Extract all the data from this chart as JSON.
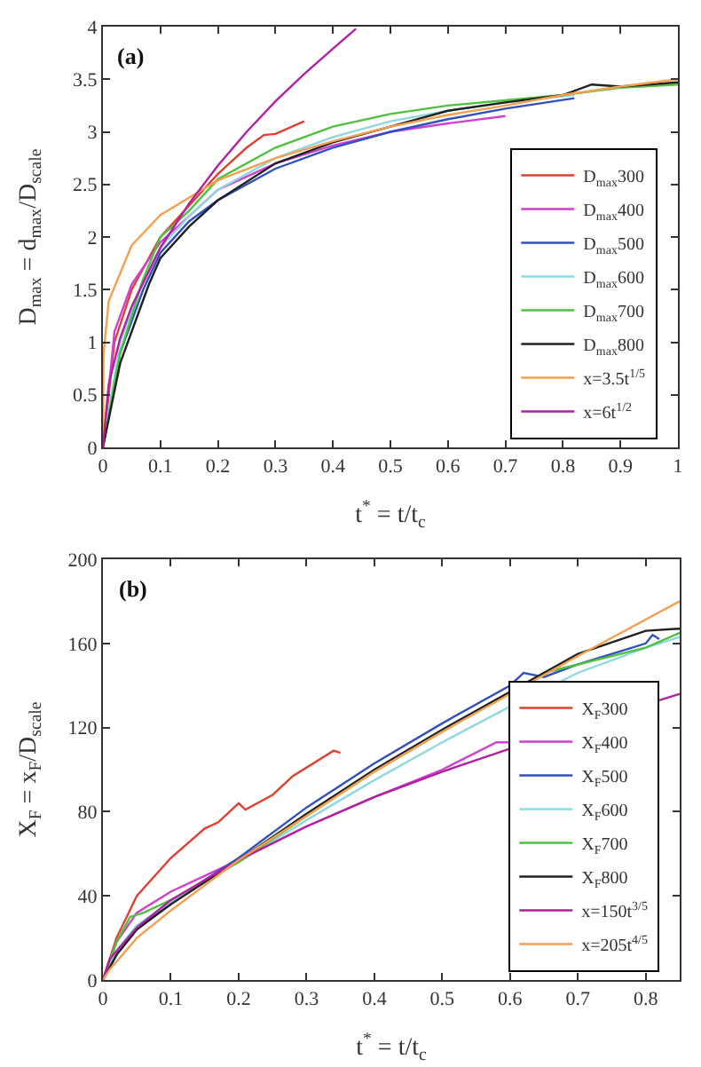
{
  "chart_data": [
    {
      "type": "line",
      "xlabel": "t$^{*}$ = t/t$_{c}$",
      "ylabel": "D$_{max}$ = d$_{max}$/D$_{scale}$",
      "annotations": [
        "(a)"
      ],
      "xlim": [
        0,
        1
      ],
      "ylim": [
        0,
        4
      ],
      "xticks": [
        0,
        0.1,
        0.2,
        0.3,
        0.4,
        0.5,
        0.6,
        0.7,
        0.8,
        0.9,
        1
      ],
      "yticks": [
        0,
        0.5,
        1,
        1.5,
        2,
        2.5,
        3,
        3.5,
        4
      ],
      "grid": false,
      "legend": "bottom right",
      "marker": "none",
      "line_style": "solid",
      "series": [
        {
          "name": "D$_{max}$300",
          "color": "#e04030",
          "x": [
            0,
            0.02,
            0.05,
            0.1,
            0.15,
            0.2,
            0.25,
            0.28,
            0.3,
            0.35
          ],
          "values": [
            0,
            1.0,
            1.5,
            2.0,
            2.3,
            2.6,
            2.85,
            2.97,
            2.98,
            3.1
          ]
        },
        {
          "name": "D$_{max}$400",
          "color": "#d040d0",
          "x": [
            0,
            0.02,
            0.05,
            0.1,
            0.15,
            0.2,
            0.3,
            0.4,
            0.5,
            0.6,
            0.7
          ],
          "values": [
            0,
            1.1,
            1.55,
            1.95,
            2.2,
            2.45,
            2.7,
            2.87,
            3.0,
            3.08,
            3.15
          ]
        },
        {
          "name": "D$_{max}$500",
          "color": "#3050c0",
          "x": [
            0,
            0.03,
            0.07,
            0.1,
            0.15,
            0.2,
            0.3,
            0.4,
            0.5,
            0.6,
            0.7,
            0.82
          ],
          "values": [
            0,
            0.9,
            1.5,
            1.85,
            2.15,
            2.35,
            2.65,
            2.85,
            3.0,
            3.12,
            3.22,
            3.32
          ]
        },
        {
          "name": "D$_{max}$600",
          "color": "#90d8e0",
          "x": [
            0,
            0.03,
            0.07,
            0.1,
            0.15,
            0.2,
            0.3,
            0.4,
            0.5,
            0.6,
            0.7,
            0.82
          ],
          "values": [
            0,
            1.0,
            1.6,
            1.9,
            2.2,
            2.45,
            2.75,
            2.95,
            3.1,
            3.2,
            3.28,
            3.35
          ]
        },
        {
          "name": "D$_{max}$700",
          "color": "#50c040",
          "x": [
            0,
            0.03,
            0.07,
            0.1,
            0.15,
            0.2,
            0.3,
            0.4,
            0.5,
            0.6,
            0.7,
            0.8,
            0.9,
            1.0
          ],
          "values": [
            0,
            0.9,
            1.6,
            2.0,
            2.25,
            2.55,
            2.85,
            3.05,
            3.17,
            3.25,
            3.3,
            3.35,
            3.42,
            3.45
          ]
        },
        {
          "name": "D$_{max}$800",
          "color": "#202020",
          "x": [
            0,
            0.03,
            0.08,
            0.1,
            0.15,
            0.2,
            0.3,
            0.4,
            0.5,
            0.6,
            0.7,
            0.8,
            0.85,
            0.9,
            1.0
          ],
          "values": [
            0,
            0.8,
            1.55,
            1.8,
            2.1,
            2.35,
            2.7,
            2.9,
            3.05,
            3.2,
            3.28,
            3.35,
            3.45,
            3.43,
            3.47
          ]
        },
        {
          "name": "x=3.5t$^{1/5}$",
          "color": "#f5a050",
          "x": [
            0,
            0.001,
            0.01,
            0.05,
            0.1,
            0.2,
            0.3,
            0.4,
            0.5,
            0.6,
            0.7,
            0.8,
            0.9,
            1.0
          ],
          "values": [
            0,
            0.88,
            1.39,
            1.92,
            2.21,
            2.54,
            2.75,
            2.91,
            3.05,
            3.16,
            3.25,
            3.35,
            3.43,
            3.5
          ]
        },
        {
          "name": "x=6t$^{1/2}$",
          "color": "#b020a0",
          "x": [
            0,
            0.01,
            0.03,
            0.05,
            0.1,
            0.15,
            0.2,
            0.25,
            0.3,
            0.35,
            0.4,
            0.44
          ],
          "values": [
            0,
            0.6,
            1.04,
            1.34,
            1.9,
            2.32,
            2.68,
            3.0,
            3.29,
            3.55,
            3.79,
            3.98
          ]
        }
      ]
    },
    {
      "type": "line",
      "xlabel": "t$^{*}$ = t/t$_{c}$",
      "ylabel": "X$_{F}$ = x$_{F}$/D$_{scale}$",
      "annotations": [
        "(b)"
      ],
      "xlim": [
        0,
        0.85
      ],
      "ylim": [
        0,
        200
      ],
      "xticks": [
        0,
        0.1,
        0.2,
        0.3,
        0.4,
        0.5,
        0.6,
        0.7,
        0.8
      ],
      "yticks": [
        0,
        40,
        80,
        120,
        160,
        200
      ],
      "grid": false,
      "legend": "bottom right",
      "marker": "none",
      "line_style": "solid",
      "series": [
        {
          "name": "X$_{F}$300",
          "color": "#e04030",
          "x": [
            0,
            0.02,
            0.05,
            0.1,
            0.15,
            0.17,
            0.2,
            0.21,
            0.25,
            0.28,
            0.34,
            0.35
          ],
          "values": [
            0,
            20,
            40,
            58,
            72,
            75,
            84,
            81,
            88,
            97,
            109,
            108
          ]
        },
        {
          "name": "X$_{F}$400",
          "color": "#d040d0",
          "x": [
            0,
            0.02,
            0.05,
            0.1,
            0.2,
            0.3,
            0.4,
            0.5,
            0.58,
            0.6
          ],
          "values": [
            0,
            18,
            32,
            42,
            57,
            73,
            87,
            100,
            113,
            113
          ]
        },
        {
          "name": "X$_{F}$500",
          "color": "#3050c0",
          "x": [
            0,
            0.02,
            0.05,
            0.1,
            0.2,
            0.3,
            0.4,
            0.5,
            0.6,
            0.62,
            0.65,
            0.7,
            0.8,
            0.81,
            0.82
          ],
          "values": [
            0,
            12,
            24,
            37,
            58,
            82,
            103,
            122,
            140,
            146,
            144,
            150,
            160,
            164,
            162
          ]
        },
        {
          "name": "X$_{F}$600",
          "color": "#90d8e0",
          "x": [
            0,
            0.02,
            0.05,
            0.1,
            0.2,
            0.3,
            0.4,
            0.5,
            0.6,
            0.7,
            0.8,
            0.85
          ],
          "values": [
            0,
            14,
            26,
            37,
            56,
            76,
            95,
            113,
            130,
            146,
            158,
            163
          ]
        },
        {
          "name": "X$_{F}$700",
          "color": "#50c040",
          "x": [
            0,
            0.02,
            0.04,
            0.06,
            0.1,
            0.2,
            0.3,
            0.4,
            0.5,
            0.65,
            0.7,
            0.8,
            0.85
          ],
          "values": [
            0,
            18,
            30,
            32,
            38,
            56,
            78,
            99,
            118,
            146,
            150,
            158,
            165
          ]
        },
        {
          "name": "X$_{F}$800",
          "color": "#202020",
          "x": [
            0,
            0.02,
            0.05,
            0.1,
            0.2,
            0.3,
            0.4,
            0.5,
            0.6,
            0.7,
            0.8,
            0.85
          ],
          "values": [
            0,
            12,
            24,
            36,
            57,
            79,
            100,
            119,
            137,
            155,
            166,
            167
          ]
        },
        {
          "name": "x=150t$^{3/5}$",
          "color": "#b020a0",
          "x": [
            0,
            0.01,
            0.05,
            0.1,
            0.2,
            0.3,
            0.4,
            0.5,
            0.6,
            0.7,
            0.82,
            0.85
          ],
          "values": [
            0,
            10,
            25,
            38,
            57,
            73,
            87,
            99,
            110,
            null,
            133,
            136
          ]
        },
        {
          "name": "x=205t$^{4/5}$",
          "color": "#f5a050",
          "x": [
            0,
            0.01,
            0.05,
            0.1,
            0.2,
            0.3,
            0.4,
            0.5,
            0.6,
            0.7,
            0.85
          ],
          "values": [
            0,
            5,
            20,
            33,
            57,
            78,
            99,
            118,
            136,
            154,
            180
          ]
        }
      ]
    }
  ]
}
